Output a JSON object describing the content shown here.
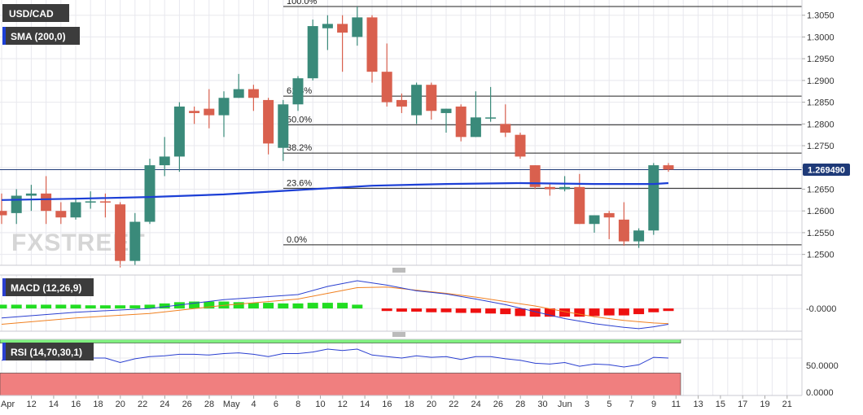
{
  "panels": {
    "price": {
      "symbol": "USD/CAD",
      "indicator": "SMA (200,0)",
      "watermark": "FXSTREET",
      "last_price_label": "1.269490",
      "y_ticks": [
        "1.3050",
        "1.3000",
        "1.2950",
        "1.2900",
        "1.2850",
        "1.2800",
        "1.2750",
        "1.2700",
        "1.2650",
        "1.2600",
        "1.2550",
        "1.2500"
      ]
    },
    "macd": {
      "label": "MACD (12,26,9)",
      "y_tick": "-0.0000"
    },
    "rsi": {
      "label": "RSI (14,70,30,1)",
      "y_ticks": [
        "50.0000",
        "0.0000"
      ]
    }
  },
  "x_axis": {
    "labels": [
      "Apr",
      "12",
      "14",
      "16",
      "18",
      "20",
      "22",
      "24",
      "26",
      "28",
      "May",
      "4",
      "6",
      "8",
      "10",
      "12",
      "14",
      "16",
      "18",
      "20",
      "22",
      "24",
      "26",
      "28",
      "30",
      "Jun",
      "3",
      "5",
      "7",
      "9",
      "11",
      "13",
      "15",
      "17",
      "19",
      "21"
    ]
  },
  "colors": {
    "bull": "#3a8a7a",
    "bear": "#d9604e",
    "sma": "#1c3fd6",
    "grid": "#e8e8ee",
    "macd_line": "#2a3fd0",
    "signal_line": "#f08020",
    "hist_pos": "#22dd22",
    "hist_neg": "#ee1111",
    "rsi_line": "#2a3fd0",
    "overbought": "#7ff07f",
    "oversold": "#f07f7f",
    "badge": "#3c3c3c",
    "last_price_badge": "#1e3a78"
  },
  "chart_data": [
    {
      "type": "candlestick",
      "title": "USD/CAD",
      "ylim": [
        1.2475,
        1.3085
      ],
      "x_count": 36,
      "candles": [
        {
          "x": 0,
          "o": 1.26,
          "h": 1.264,
          "l": 1.257,
          "c": 1.259
        },
        {
          "x": 1,
          "o": 1.2595,
          "h": 1.265,
          "l": 1.257,
          "c": 1.2635
        },
        {
          "x": 2,
          "o": 1.2635,
          "h": 1.266,
          "l": 1.26,
          "c": 1.264
        },
        {
          "x": 3,
          "o": 1.264,
          "h": 1.268,
          "l": 1.257,
          "c": 1.26
        },
        {
          "x": 4,
          "o": 1.26,
          "h": 1.262,
          "l": 1.257,
          "c": 1.2585
        },
        {
          "x": 5,
          "o": 1.2585,
          "h": 1.263,
          "l": 1.258,
          "c": 1.262
        },
        {
          "x": 6,
          "o": 1.262,
          "h": 1.2645,
          "l": 1.2605,
          "c": 1.2622
        },
        {
          "x": 7,
          "o": 1.2622,
          "h": 1.264,
          "l": 1.2585,
          "c": 1.262
        },
        {
          "x": 8,
          "o": 1.2615,
          "h": 1.262,
          "l": 1.247,
          "c": 1.2485
        },
        {
          "x": 9,
          "o": 1.2485,
          "h": 1.2595,
          "l": 1.2475,
          "c": 1.2575
        },
        {
          "x": 10,
          "o": 1.2575,
          "h": 1.272,
          "l": 1.257,
          "c": 1.2705
        },
        {
          "x": 11,
          "o": 1.2705,
          "h": 1.277,
          "l": 1.268,
          "c": 1.2725
        },
        {
          "x": 12,
          "o": 1.2725,
          "h": 1.285,
          "l": 1.269,
          "c": 1.284
        },
        {
          "x": 13,
          "o": 1.283,
          "h": 1.284,
          "l": 1.28,
          "c": 1.2825
        },
        {
          "x": 14,
          "o": 1.2835,
          "h": 1.288,
          "l": 1.279,
          "c": 1.282
        },
        {
          "x": 15,
          "o": 1.282,
          "h": 1.2875,
          "l": 1.277,
          "c": 1.286
        },
        {
          "x": 16,
          "o": 1.286,
          "h": 1.2915,
          "l": 1.286,
          "c": 1.288
        },
        {
          "x": 17,
          "o": 1.288,
          "h": 1.289,
          "l": 1.283,
          "c": 1.286
        },
        {
          "x": 18,
          "o": 1.2855,
          "h": 1.286,
          "l": 1.273,
          "c": 1.2755
        },
        {
          "x": 19,
          "o": 1.2745,
          "h": 1.2855,
          "l": 1.2715,
          "c": 1.2845
        },
        {
          "x": 20,
          "o": 1.2845,
          "h": 1.291,
          "l": 1.283,
          "c": 1.2905
        },
        {
          "x": 21,
          "o": 1.2905,
          "h": 1.304,
          "l": 1.29,
          "c": 1.3025
        },
        {
          "x": 22,
          "o": 1.302,
          "h": 1.305,
          "l": 1.297,
          "c": 1.303
        },
        {
          "x": 23,
          "o": 1.303,
          "h": 1.305,
          "l": 1.292,
          "c": 1.301
        },
        {
          "x": 24,
          "o": 1.3,
          "h": 1.307,
          "l": 1.298,
          "c": 1.3045
        },
        {
          "x": 25,
          "o": 1.3045,
          "h": 1.305,
          "l": 1.2895,
          "c": 1.292
        },
        {
          "x": 26,
          "o": 1.292,
          "h": 1.2985,
          "l": 1.284,
          "c": 1.285
        },
        {
          "x": 27,
          "o": 1.2855,
          "h": 1.287,
          "l": 1.2825,
          "c": 1.284
        },
        {
          "x": 28,
          "o": 1.282,
          "h": 1.2895,
          "l": 1.28,
          "c": 1.289
        },
        {
          "x": 29,
          "o": 1.289,
          "h": 1.2895,
          "l": 1.281,
          "c": 1.283
        },
        {
          "x": 30,
          "o": 1.2825,
          "h": 1.2835,
          "l": 1.278,
          "c": 1.2835
        },
        {
          "x": 31,
          "o": 1.284,
          "h": 1.2845,
          "l": 1.276,
          "c": 1.277
        },
        {
          "x": 32,
          "o": 1.277,
          "h": 1.2875,
          "l": 1.277,
          "c": 1.2815
        },
        {
          "x": 33,
          "o": 1.2815,
          "h": 1.2885,
          "l": 1.2805,
          "c": 1.2815
        },
        {
          "x": 34,
          "o": 1.28,
          "h": 1.2845,
          "l": 1.277,
          "c": 1.278
        },
        {
          "x": 35,
          "o": 1.2775,
          "h": 1.278,
          "l": 1.272,
          "c": 1.2725
        },
        {
          "x": 36,
          "o": 1.2705,
          "h": 1.2705,
          "l": 1.265,
          "c": 1.2655
        },
        {
          "x": 37,
          "o": 1.2655,
          "h": 1.2665,
          "l": 1.2635,
          "c": 1.265
        },
        {
          "x": 38,
          "o": 1.265,
          "h": 1.268,
          "l": 1.2645,
          "c": 1.2655
        },
        {
          "x": 39,
          "o": 1.2655,
          "h": 1.2685,
          "l": 1.257,
          "c": 1.257
        },
        {
          "x": 40,
          "o": 1.257,
          "h": 1.259,
          "l": 1.255,
          "c": 1.259
        },
        {
          "x": 41,
          "o": 1.2595,
          "h": 1.26,
          "l": 1.2535,
          "c": 1.2585
        },
        {
          "x": 42,
          "o": 1.258,
          "h": 1.262,
          "l": 1.252,
          "c": 1.253
        },
        {
          "x": 43,
          "o": 1.253,
          "h": 1.256,
          "l": 1.2515,
          "c": 1.2555
        },
        {
          "x": 44,
          "o": 1.2555,
          "h": 1.271,
          "l": 1.2545,
          "c": 1.2705
        },
        {
          "x": 45,
          "o": 1.2705,
          "h": 1.271,
          "l": 1.269,
          "c": 1.2695
        }
      ],
      "sma_200": {
        "name": "SMA (200,0)",
        "x": [
          0,
          5,
          10,
          15,
          20,
          25,
          30,
          35,
          40,
          44,
          45
        ],
        "y": [
          1.2625,
          1.2628,
          1.2632,
          1.2638,
          1.2648,
          1.2658,
          1.2662,
          1.2664,
          1.2662,
          1.2662,
          1.2664
        ]
      },
      "fibonacci": [
        {
          "label": "100.0%",
          "value": 1.307
        },
        {
          "label": "61.8%",
          "value": 1.2864
        },
        {
          "label": "50.0%",
          "value": 1.2798
        },
        {
          "label": "38.2%",
          "value": 1.2733
        },
        {
          "label": "23.6%",
          "value": 1.2652
        },
        {
          "label": "0.0%",
          "value": 1.2522
        }
      ],
      "last_price": 1.26949
    },
    {
      "type": "macd",
      "title": "MACD (12,26,9)",
      "ylim": [
        -0.0036,
        0.0053
      ],
      "x": [
        0,
        5,
        10,
        15,
        20,
        22,
        24,
        26,
        28,
        30,
        32,
        34,
        36,
        38,
        40,
        42,
        43,
        44,
        45
      ],
      "macd": [
        -0.0015,
        -0.0006,
        0.0,
        0.0014,
        0.0022,
        0.0035,
        0.0044,
        0.0037,
        0.0028,
        0.0023,
        0.0015,
        0.0006,
        -0.0005,
        -0.0016,
        -0.0024,
        -0.003,
        -0.0032,
        -0.0029,
        -0.0025
      ],
      "signal": [
        -0.0025,
        -0.0015,
        -0.0008,
        0.0005,
        0.0015,
        0.0024,
        0.0033,
        0.0034,
        0.0029,
        0.0024,
        0.0018,
        0.0011,
        0.0004,
        -0.0005,
        -0.0013,
        -0.0019,
        -0.0021,
        -0.0023,
        -0.0024
      ],
      "histogram": [
        0.0006,
        0.0006,
        0.0006,
        0.0006,
        0.0006,
        0.0006,
        0.0005,
        0.0005,
        0.0005,
        0.0005,
        0.0006,
        0.0008,
        0.001,
        0.0011,
        0.0011,
        0.0011,
        0.001,
        0.0009,
        0.0009,
        0.0008,
        0.0008,
        0.0009,
        0.0009,
        0.0009,
        0.0006,
        0.0,
        -0.0004,
        -0.0005,
        -0.0005,
        -0.0006,
        -0.0006,
        -0.0007,
        -0.0007,
        -0.0008,
        -0.0009,
        -0.0012,
        -0.0013,
        -0.0013,
        -0.0013,
        -0.0013,
        -0.0012,
        -0.0011,
        -0.0011,
        -0.0009,
        -0.0006,
        -0.0004
      ]
    },
    {
      "type": "rsi",
      "title": "RSI (14,70,30,1)",
      "ylim": [
        0,
        75
      ],
      "overbought": 70,
      "oversold": 30,
      "x": [
        0,
        1,
        2,
        3,
        4,
        5,
        6,
        7,
        8,
        9,
        10,
        11,
        12,
        13,
        14,
        15,
        16,
        17,
        18,
        19,
        20,
        21,
        22,
        23,
        24,
        25,
        26,
        27,
        28,
        29,
        30,
        31,
        32,
        33,
        34,
        35,
        36,
        37,
        38,
        39,
        40,
        41,
        42,
        43,
        44,
        45
      ],
      "values": [
        47,
        49,
        53,
        47,
        48,
        50,
        50,
        50,
        44,
        49,
        52,
        53,
        55,
        55,
        54,
        56,
        57,
        55,
        52,
        56,
        56,
        58,
        62,
        60,
        62,
        54,
        52,
        50,
        53,
        51,
        52,
        48,
        52,
        52,
        49,
        47,
        43,
        42,
        44,
        39,
        42,
        41,
        38,
        41,
        51,
        50
      ]
    }
  ]
}
